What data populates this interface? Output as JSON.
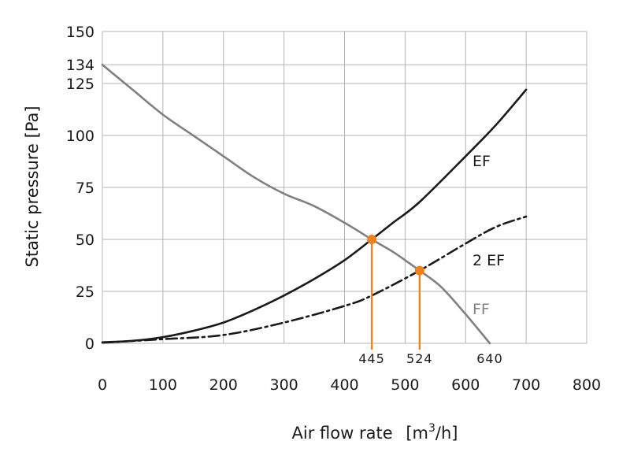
{
  "chart_data": {
    "type": "line",
    "title": "",
    "xlabel": "Air flow rate",
    "xlabel_unit_open": "[m",
    "xlabel_unit_sup": "3",
    "xlabel_unit_close": "/h]",
    "ylabel": "Static pressure  [Pa]",
    "xlim": [
      0,
      800
    ],
    "ylim": [
      0,
      150
    ],
    "x_ticks": [
      "0",
      "100",
      "200",
      "300",
      "400",
      "500",
      "600",
      "700",
      "800"
    ],
    "y_ticks": [
      "0",
      "25",
      "50",
      "75",
      "100",
      "125",
      "150"
    ],
    "extra_y_tick": "134",
    "extra_y_value": 134,
    "grid": true,
    "series": [
      {
        "name": "FF",
        "color": "#808080",
        "style": "solid",
        "points": [
          [
            0,
            134
          ],
          [
            50,
            122
          ],
          [
            100,
            110
          ],
          [
            150,
            100
          ],
          [
            200,
            90
          ],
          [
            250,
            80
          ],
          [
            300,
            72
          ],
          [
            350,
            66
          ],
          [
            400,
            58
          ],
          [
            445,
            50
          ],
          [
            480,
            44
          ],
          [
            500,
            40
          ],
          [
            524,
            35
          ],
          [
            560,
            27
          ],
          [
            600,
            14
          ],
          [
            640,
            0
          ]
        ]
      },
      {
        "name": "EF",
        "color": "#1a1a1a",
        "style": "solid",
        "points": [
          [
            0,
            0.5
          ],
          [
            50,
            1.2
          ],
          [
            100,
            3
          ],
          [
            150,
            6
          ],
          [
            200,
            10
          ],
          [
            250,
            16
          ],
          [
            300,
            23
          ],
          [
            350,
            31
          ],
          [
            400,
            40
          ],
          [
            445,
            50
          ],
          [
            480,
            58
          ],
          [
            524,
            68
          ],
          [
            600,
            90
          ],
          [
            650,
            105
          ],
          [
            700,
            122
          ]
        ]
      },
      {
        "name": "2 EF",
        "color": "#1a1a1a",
        "style": "dashdot",
        "points": [
          [
            0,
            0.3
          ],
          [
            100,
            2
          ],
          [
            200,
            4
          ],
          [
            300,
            10
          ],
          [
            400,
            18
          ],
          [
            445,
            23
          ],
          [
            524,
            35
          ],
          [
            600,
            48
          ],
          [
            650,
            56
          ],
          [
            700,
            61
          ]
        ]
      }
    ],
    "operating_points": [
      {
        "x": 445,
        "y": 50,
        "label": "445"
      },
      {
        "x": 524,
        "y": 35,
        "label": "524"
      }
    ],
    "x_annotation": {
      "x": 640,
      "label": "640"
    },
    "accent_color": "#f0821e"
  }
}
